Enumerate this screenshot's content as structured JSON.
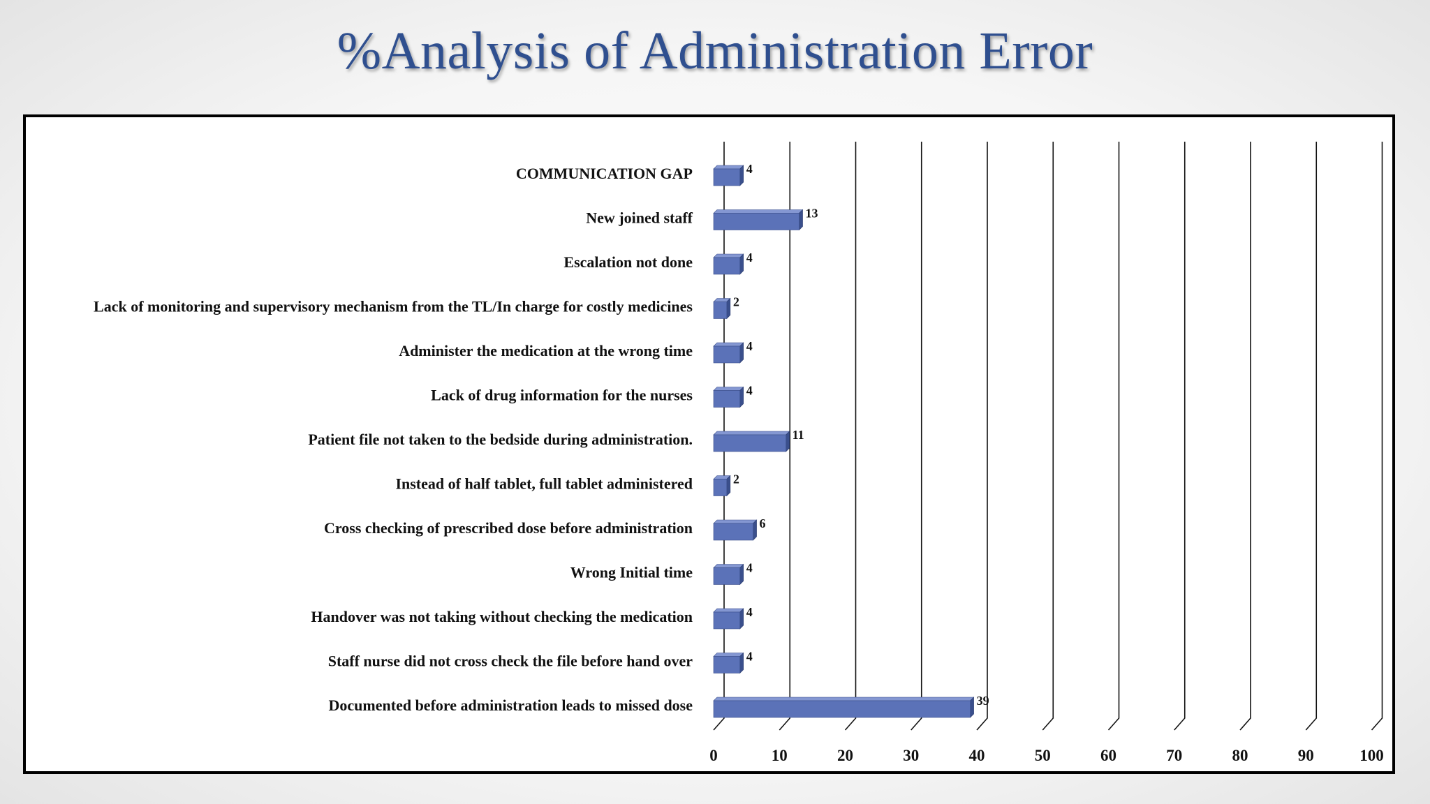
{
  "slide": {
    "title": "%Analysis of Administration Error"
  },
  "colors": {
    "title": "#2f4f8f",
    "bar_front": "#5b72b8",
    "bar_top": "#8497d2",
    "bar_side": "#3a4f8c",
    "grid": "#111111"
  },
  "chart_data": {
    "type": "bar",
    "orientation": "horizontal",
    "style": "3d-clustered",
    "categories": [
      "COMMUNICATION GAP",
      "New joined staff ",
      "Escalation not done ",
      "Lack of monitoring and supervisory mechanism from the TL/In charge for costly medicines",
      "Administer the medication at the wrong time",
      "Lack of drug information for the nurses",
      "Patient file not taken to the bedside during administration.",
      "Instead of half tablet, full tablet administered",
      "Cross checking of  prescribed dose before administration",
      "Wrong Initial time ",
      "Handover was not taking without checking the medication",
      "Staff nurse did not cross check the file before hand over ",
      "Documented before administration leads to missed dose"
    ],
    "values": [
      4,
      13,
      4,
      2,
      4,
      4,
      11,
      2,
      6,
      4,
      4,
      4,
      39
    ],
    "data_labels": [
      "4",
      "13",
      "4",
      "2",
      "4",
      "4",
      "11",
      "2",
      "6",
      "4",
      "4",
      "4",
      "39"
    ],
    "xlim": [
      0,
      100
    ],
    "xticks": [
      0,
      10,
      20,
      30,
      40,
      50,
      60,
      70,
      80,
      90,
      100
    ],
    "xtick_labels": [
      "0",
      "10",
      "20",
      "30",
      "40",
      "50",
      "60",
      "70",
      "80",
      "90",
      "100"
    ],
    "grid": true,
    "legend": "none",
    "title": "",
    "xlabel": "",
    "ylabel": ""
  }
}
